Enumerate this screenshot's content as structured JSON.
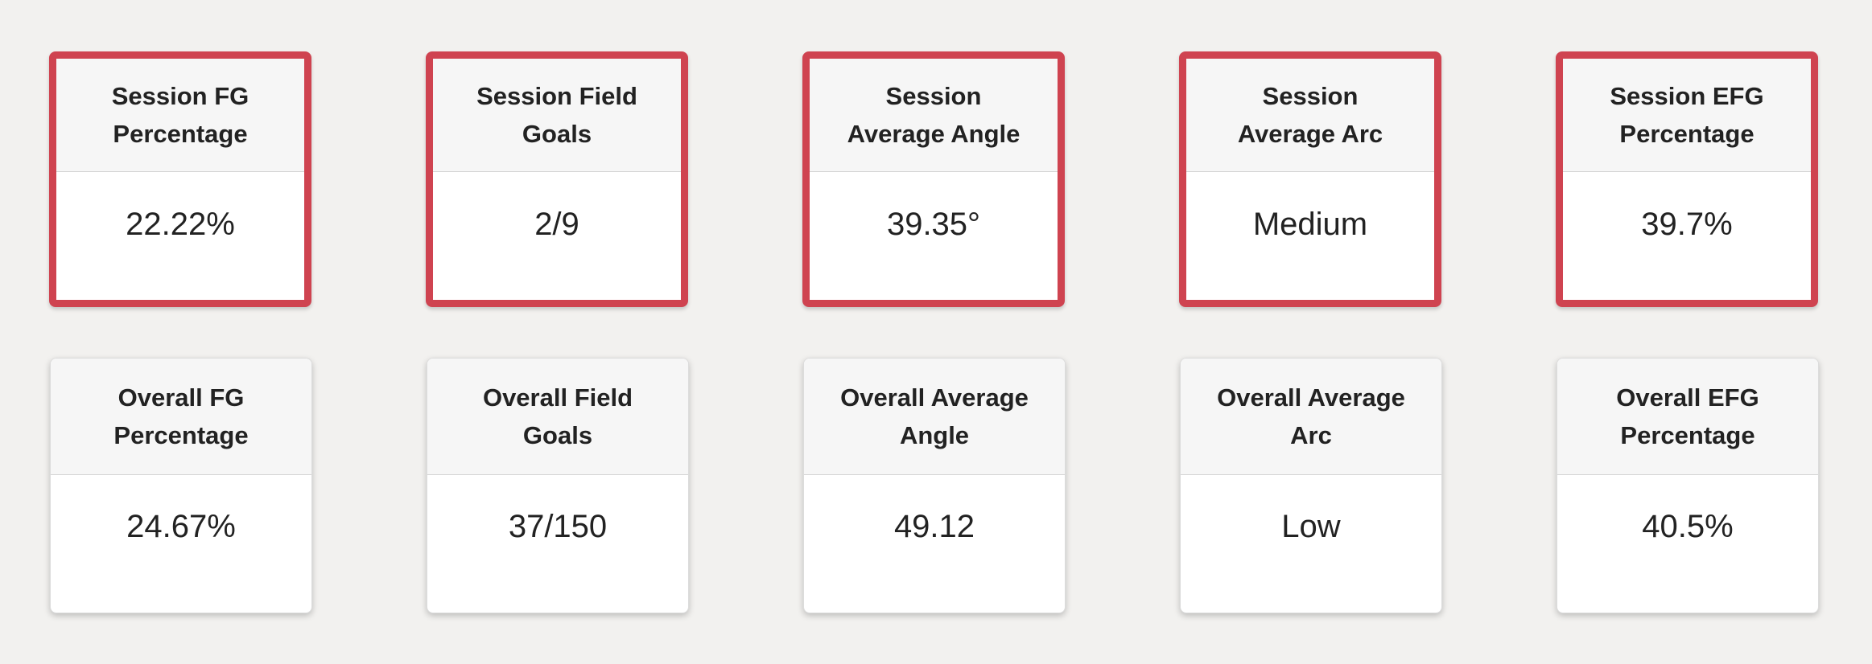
{
  "session_cards": [
    {
      "title": "Session FG\nPercentage",
      "value": "22.22%"
    },
    {
      "title": "Session Field\nGoals",
      "value": "2/9"
    },
    {
      "title": "Session\nAverage Angle",
      "value": "39.35°"
    },
    {
      "title": "Session\nAverage Arc",
      "value": "Medium"
    },
    {
      "title": "Session EFG\nPercentage",
      "value": "39.7%"
    }
  ],
  "overall_cards": [
    {
      "title": "Overall FG\nPercentage",
      "value": "24.67%"
    },
    {
      "title": "Overall Field\nGoals",
      "value": "37/150"
    },
    {
      "title": "Overall Average\nAngle",
      "value": "49.12"
    },
    {
      "title": "Overall Average\nArc",
      "value": "Low"
    },
    {
      "title": "Overall EFG\nPercentage",
      "value": "40.5%"
    }
  ],
  "colors": {
    "highlight_border": "#cf4350",
    "background": "#f2f1ef"
  }
}
